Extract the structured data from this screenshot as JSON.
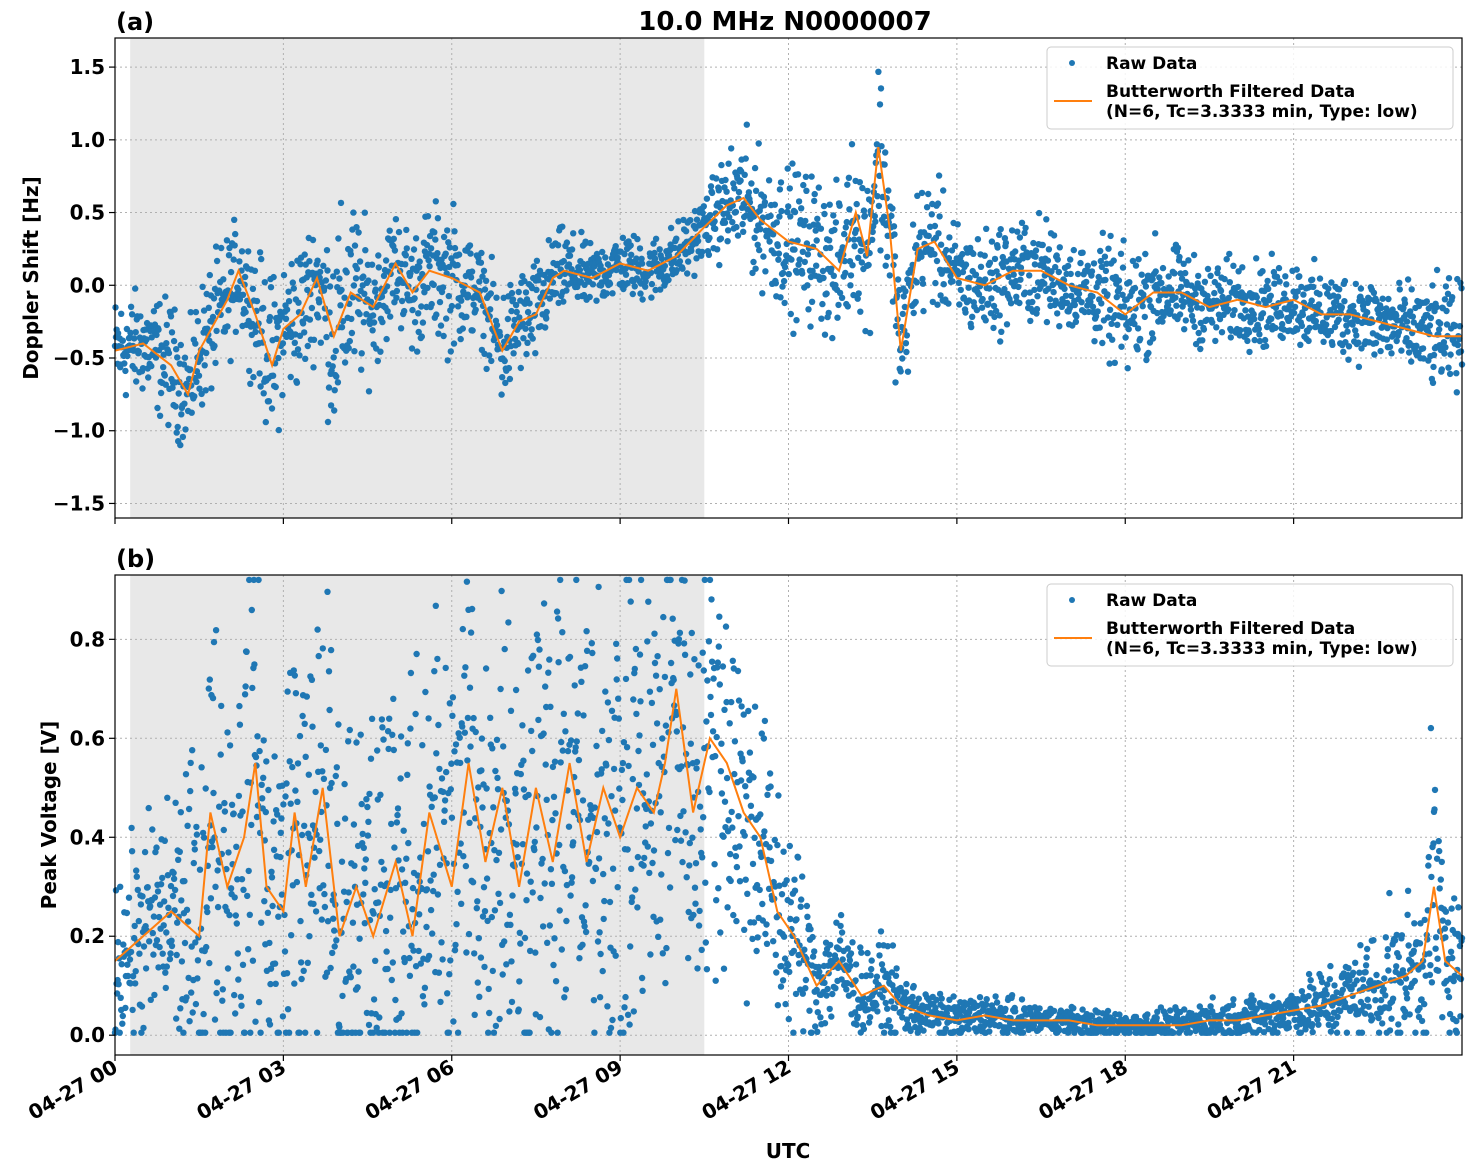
{
  "figure": {
    "title": "10.0 MHz N0000007",
    "xlabel": "UTC",
    "colors": {
      "raw": "#1f77b4",
      "filtered": "#ff7f0e",
      "shade": "#e8e8e8",
      "grid": "#b0b0b0"
    }
  },
  "chart_data": [
    {
      "panel_label": "(a)",
      "type": "scatter",
      "ylabel": "Doppler Shift [Hz]",
      "xlim_hours": [
        0,
        24
      ],
      "ylim": [
        -1.6,
        1.7
      ],
      "yticks": [
        -1.5,
        -1.0,
        -0.5,
        0.0,
        0.5,
        1.0,
        1.5
      ],
      "ytick_labels": [
        "−1.5",
        "−1.0",
        "−0.5",
        "0.0",
        "0.5",
        "1.0",
        "1.5"
      ],
      "shaded_span_hours": [
        0.27,
        10.5
      ],
      "grid": true,
      "legend_position": "top-right",
      "legend": [
        "Raw Data",
        "Butterworth Filtered Data",
        "(N=6, Tc=3.3333 min, Type: low)"
      ],
      "filtered_curve": {
        "x_hours": [
          0,
          0.5,
          1.0,
          1.3,
          1.5,
          2.0,
          2.2,
          2.5,
          2.8,
          3.0,
          3.3,
          3.6,
          3.9,
          4.2,
          4.6,
          5.0,
          5.3,
          5.6,
          6.0,
          6.5,
          6.9,
          7.2,
          7.5,
          7.8,
          8.0,
          8.5,
          9.0,
          9.5,
          10.0,
          10.5,
          10.9,
          11.2,
          11.5,
          12.0,
          12.5,
          12.9,
          13.2,
          13.4,
          13.6,
          13.8,
          14.0,
          14.3,
          14.6,
          15.0,
          15.5,
          16.0,
          16.5,
          17.0,
          17.5,
          18.0,
          18.5,
          19.0,
          19.5,
          20.0,
          20.5,
          21.0,
          21.5,
          22.0,
          22.5,
          23.0,
          23.5,
          24.0
        ],
        "y": [
          -0.45,
          -0.4,
          -0.55,
          -0.75,
          -0.45,
          -0.1,
          0.1,
          -0.2,
          -0.55,
          -0.3,
          -0.2,
          0.05,
          -0.35,
          -0.05,
          -0.15,
          0.15,
          -0.05,
          0.1,
          0.05,
          -0.05,
          -0.45,
          -0.25,
          -0.2,
          0.05,
          0.1,
          0.05,
          0.15,
          0.1,
          0.2,
          0.4,
          0.55,
          0.6,
          0.45,
          0.3,
          0.25,
          0.1,
          0.5,
          0.2,
          0.95,
          0.4,
          -0.45,
          0.25,
          0.3,
          0.05,
          0.0,
          0.1,
          0.1,
          0.0,
          -0.05,
          -0.2,
          -0.05,
          -0.05,
          -0.15,
          -0.1,
          -0.15,
          -0.1,
          -0.2,
          -0.2,
          -0.25,
          -0.3,
          -0.35,
          -0.35
        ]
      },
      "raw_envelope": {
        "x_hours": [
          0,
          0.5,
          1.0,
          1.3,
          1.5,
          2.0,
          2.2,
          2.5,
          2.8,
          3.0,
          3.3,
          3.6,
          3.9,
          4.2,
          4.6,
          5.0,
          5.3,
          5.6,
          6.0,
          6.5,
          6.9,
          7.2,
          7.5,
          7.8,
          8.0,
          8.5,
          9.0,
          9.5,
          10.0,
          10.5,
          10.9,
          11.2,
          11.5,
          12.0,
          12.5,
          12.9,
          13.2,
          13.4,
          13.6,
          13.8,
          14.0,
          14.3,
          14.6,
          15.0,
          15.5,
          16.0,
          16.5,
          17.0,
          17.5,
          18.0,
          18.5,
          19.0,
          19.5,
          20.0,
          20.5,
          21.0,
          21.5,
          22.0,
          22.5,
          23.0,
          23.5,
          24.0
        ],
        "spread": [
          0.25,
          0.25,
          0.3,
          0.25,
          0.3,
          0.3,
          0.25,
          0.3,
          0.4,
          0.35,
          0.35,
          0.3,
          0.5,
          0.45,
          0.3,
          0.25,
          0.3,
          0.3,
          0.35,
          0.2,
          0.3,
          0.25,
          0.25,
          0.2,
          0.2,
          0.15,
          0.15,
          0.15,
          0.15,
          0.15,
          0.25,
          0.3,
          0.3,
          0.35,
          0.35,
          0.35,
          0.4,
          0.4,
          0.45,
          0.4,
          0.3,
          0.3,
          0.3,
          0.25,
          0.25,
          0.25,
          0.25,
          0.2,
          0.25,
          0.3,
          0.25,
          0.2,
          0.2,
          0.2,
          0.2,
          0.2,
          0.2,
          0.2,
          0.2,
          0.2,
          0.25,
          0.25
        ]
      }
    },
    {
      "panel_label": "(b)",
      "type": "scatter",
      "ylabel": "Peak Voltage [V]",
      "xlabel": "UTC",
      "xlim_hours": [
        0,
        24
      ],
      "ylim": [
        -0.04,
        0.93
      ],
      "yticks": [
        0.0,
        0.2,
        0.4,
        0.6,
        0.8
      ],
      "ytick_labels": [
        "0.0",
        "0.2",
        "0.4",
        "0.6",
        "0.8"
      ],
      "xticks_hours": [
        0,
        3,
        6,
        9,
        12,
        15,
        18,
        21
      ],
      "xtick_labels": [
        "04-27 00",
        "04-27 03",
        "04-27 06",
        "04-27 09",
        "04-27 12",
        "04-27 15",
        "04-27 18",
        "04-27 21"
      ],
      "shaded_span_hours": [
        0.27,
        10.5
      ],
      "grid": true,
      "legend_position": "top-right",
      "legend": [
        "Raw Data",
        "Butterworth Filtered Data",
        "(N=6, Tc=3.3333 min, Type: low)"
      ],
      "filtered_curve": {
        "x_hours": [
          0,
          0.5,
          1.0,
          1.5,
          1.7,
          2.0,
          2.3,
          2.5,
          2.7,
          3.0,
          3.2,
          3.4,
          3.7,
          4.0,
          4.3,
          4.6,
          5.0,
          5.3,
          5.6,
          6.0,
          6.3,
          6.6,
          6.9,
          7.2,
          7.5,
          7.8,
          8.1,
          8.4,
          8.7,
          9.0,
          9.3,
          9.6,
          9.8,
          10.0,
          10.3,
          10.6,
          10.9,
          11.2,
          11.5,
          11.8,
          12.1,
          12.5,
          12.9,
          13.3,
          13.7,
          14.0,
          14.5,
          15.0,
          15.5,
          16.0,
          16.5,
          17.0,
          17.5,
          18.0,
          18.5,
          19.0,
          19.5,
          20.0,
          20.5,
          21.0,
          21.5,
          22.0,
          22.5,
          23.0,
          23.3,
          23.5,
          23.7,
          24.0
        ],
        "y": [
          0.15,
          0.2,
          0.25,
          0.2,
          0.45,
          0.3,
          0.4,
          0.55,
          0.3,
          0.25,
          0.45,
          0.3,
          0.5,
          0.2,
          0.3,
          0.2,
          0.35,
          0.2,
          0.45,
          0.3,
          0.55,
          0.35,
          0.5,
          0.3,
          0.5,
          0.35,
          0.55,
          0.35,
          0.5,
          0.4,
          0.5,
          0.45,
          0.55,
          0.7,
          0.45,
          0.6,
          0.55,
          0.45,
          0.4,
          0.25,
          0.2,
          0.1,
          0.15,
          0.08,
          0.1,
          0.06,
          0.04,
          0.03,
          0.04,
          0.03,
          0.03,
          0.03,
          0.02,
          0.02,
          0.02,
          0.02,
          0.03,
          0.03,
          0.04,
          0.05,
          0.06,
          0.08,
          0.1,
          0.12,
          0.15,
          0.3,
          0.15,
          0.12
        ]
      },
      "raw_envelope": {
        "x_hours": [
          0,
          0.5,
          1.0,
          1.5,
          1.7,
          2.0,
          2.3,
          2.5,
          2.7,
          3.0,
          3.2,
          3.4,
          3.7,
          4.0,
          4.3,
          4.6,
          5.0,
          5.3,
          5.6,
          6.0,
          6.3,
          6.6,
          6.9,
          7.2,
          7.5,
          7.8,
          8.1,
          8.4,
          8.7,
          9.0,
          9.3,
          9.6,
          9.8,
          10.0,
          10.3,
          10.6,
          10.9,
          11.2,
          11.5,
          11.8,
          12.1,
          12.5,
          12.9,
          13.3,
          13.7,
          14.0,
          14.5,
          15.0,
          15.5,
          16.0,
          16.5,
          17.0,
          17.5,
          18.0,
          18.5,
          19.0,
          19.5,
          20.0,
          20.5,
          21.0,
          21.5,
          22.0,
          22.5,
          23.0,
          23.3,
          23.5,
          23.7,
          24.0
        ],
        "spread": [
          0.12,
          0.15,
          0.18,
          0.25,
          0.3,
          0.3,
          0.35,
          0.35,
          0.3,
          0.3,
          0.35,
          0.3,
          0.35,
          0.3,
          0.3,
          0.3,
          0.35,
          0.3,
          0.35,
          0.35,
          0.35,
          0.35,
          0.35,
          0.35,
          0.35,
          0.35,
          0.35,
          0.35,
          0.35,
          0.35,
          0.35,
          0.35,
          0.35,
          0.3,
          0.3,
          0.3,
          0.3,
          0.25,
          0.2,
          0.18,
          0.15,
          0.08,
          0.08,
          0.06,
          0.06,
          0.05,
          0.03,
          0.03,
          0.03,
          0.03,
          0.02,
          0.02,
          0.02,
          0.02,
          0.02,
          0.02,
          0.03,
          0.03,
          0.03,
          0.04,
          0.05,
          0.06,
          0.08,
          0.1,
          0.12,
          0.2,
          0.15,
          0.1
        ]
      }
    }
  ]
}
